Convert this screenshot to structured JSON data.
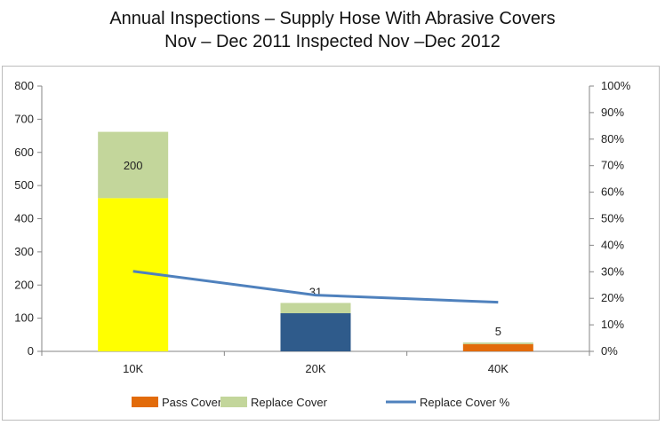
{
  "chart_data": {
    "type": "bar",
    "title": "Annual Inspections – Supply Hose With Abrasive Covers",
    "subtitle": "Nov – Dec 2011 Inspected Nov –Dec 2012",
    "categories": [
      "10K",
      "20K",
      "40K"
    ],
    "stacked": true,
    "bar_fill_colors": [
      "#ffff00",
      "#2f5b8b",
      "#e26b0a"
    ],
    "series": [
      {
        "name": "Pass Cover",
        "type": "bar",
        "axis": "left",
        "values": [
          462,
          115,
          22
        ],
        "color": "#e26b0a"
      },
      {
        "name": "Replace Cover",
        "type": "bar",
        "axis": "left",
        "values": [
          200,
          31,
          5
        ],
        "color": "#c3d69b"
      },
      {
        "name": "Replace Cover %",
        "type": "line",
        "axis": "right",
        "values": [
          30.2,
          21.2,
          18.5
        ],
        "color": "#4f81bd"
      }
    ],
    "data_labels": [
      "200",
      "31",
      "5"
    ],
    "ylim": [
      0,
      800
    ],
    "yticks": [
      "0",
      "100",
      "200",
      "300",
      "400",
      "500",
      "600",
      "700",
      "800"
    ],
    "y2lim": [
      0,
      100
    ],
    "y2ticks": [
      "0%",
      "10%",
      "20%",
      "30%",
      "40%",
      "50%",
      "60%",
      "70%",
      "80%",
      "90%",
      "100%"
    ],
    "grid": false,
    "legend": "bottom"
  }
}
